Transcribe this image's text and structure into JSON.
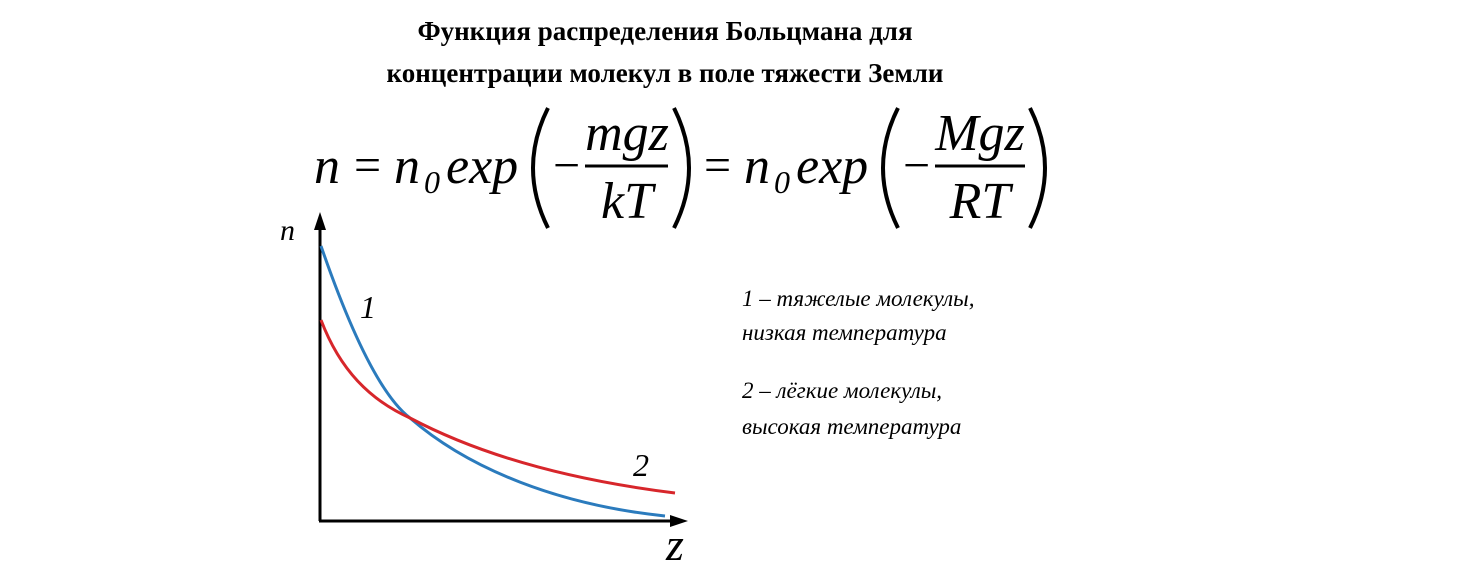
{
  "title": {
    "line1": "Функция распределения Больцмана для",
    "line2": "концентрации молекул в поле тяжести Земли"
  },
  "formula": {
    "lhs": "n",
    "equals": "=",
    "n0_base": "n",
    "n0_sub": "0",
    "exp": "exp",
    "minus": "−",
    "numerator1": "mgz",
    "denominator1": "kT",
    "numerator2": "Mgz",
    "denominator2": "RT"
  },
  "graph": {
    "y_label": "n",
    "x_label": "z",
    "curve1_label": "1",
    "curve2_label": "2"
  },
  "legend": {
    "item1": {
      "line1": "1 – тяжелые молекулы,",
      "line2": "низкая температура"
    },
    "item2": {
      "line1": "2 – лёгкие молекулы,",
      "line2": "высокая температура"
    }
  }
}
